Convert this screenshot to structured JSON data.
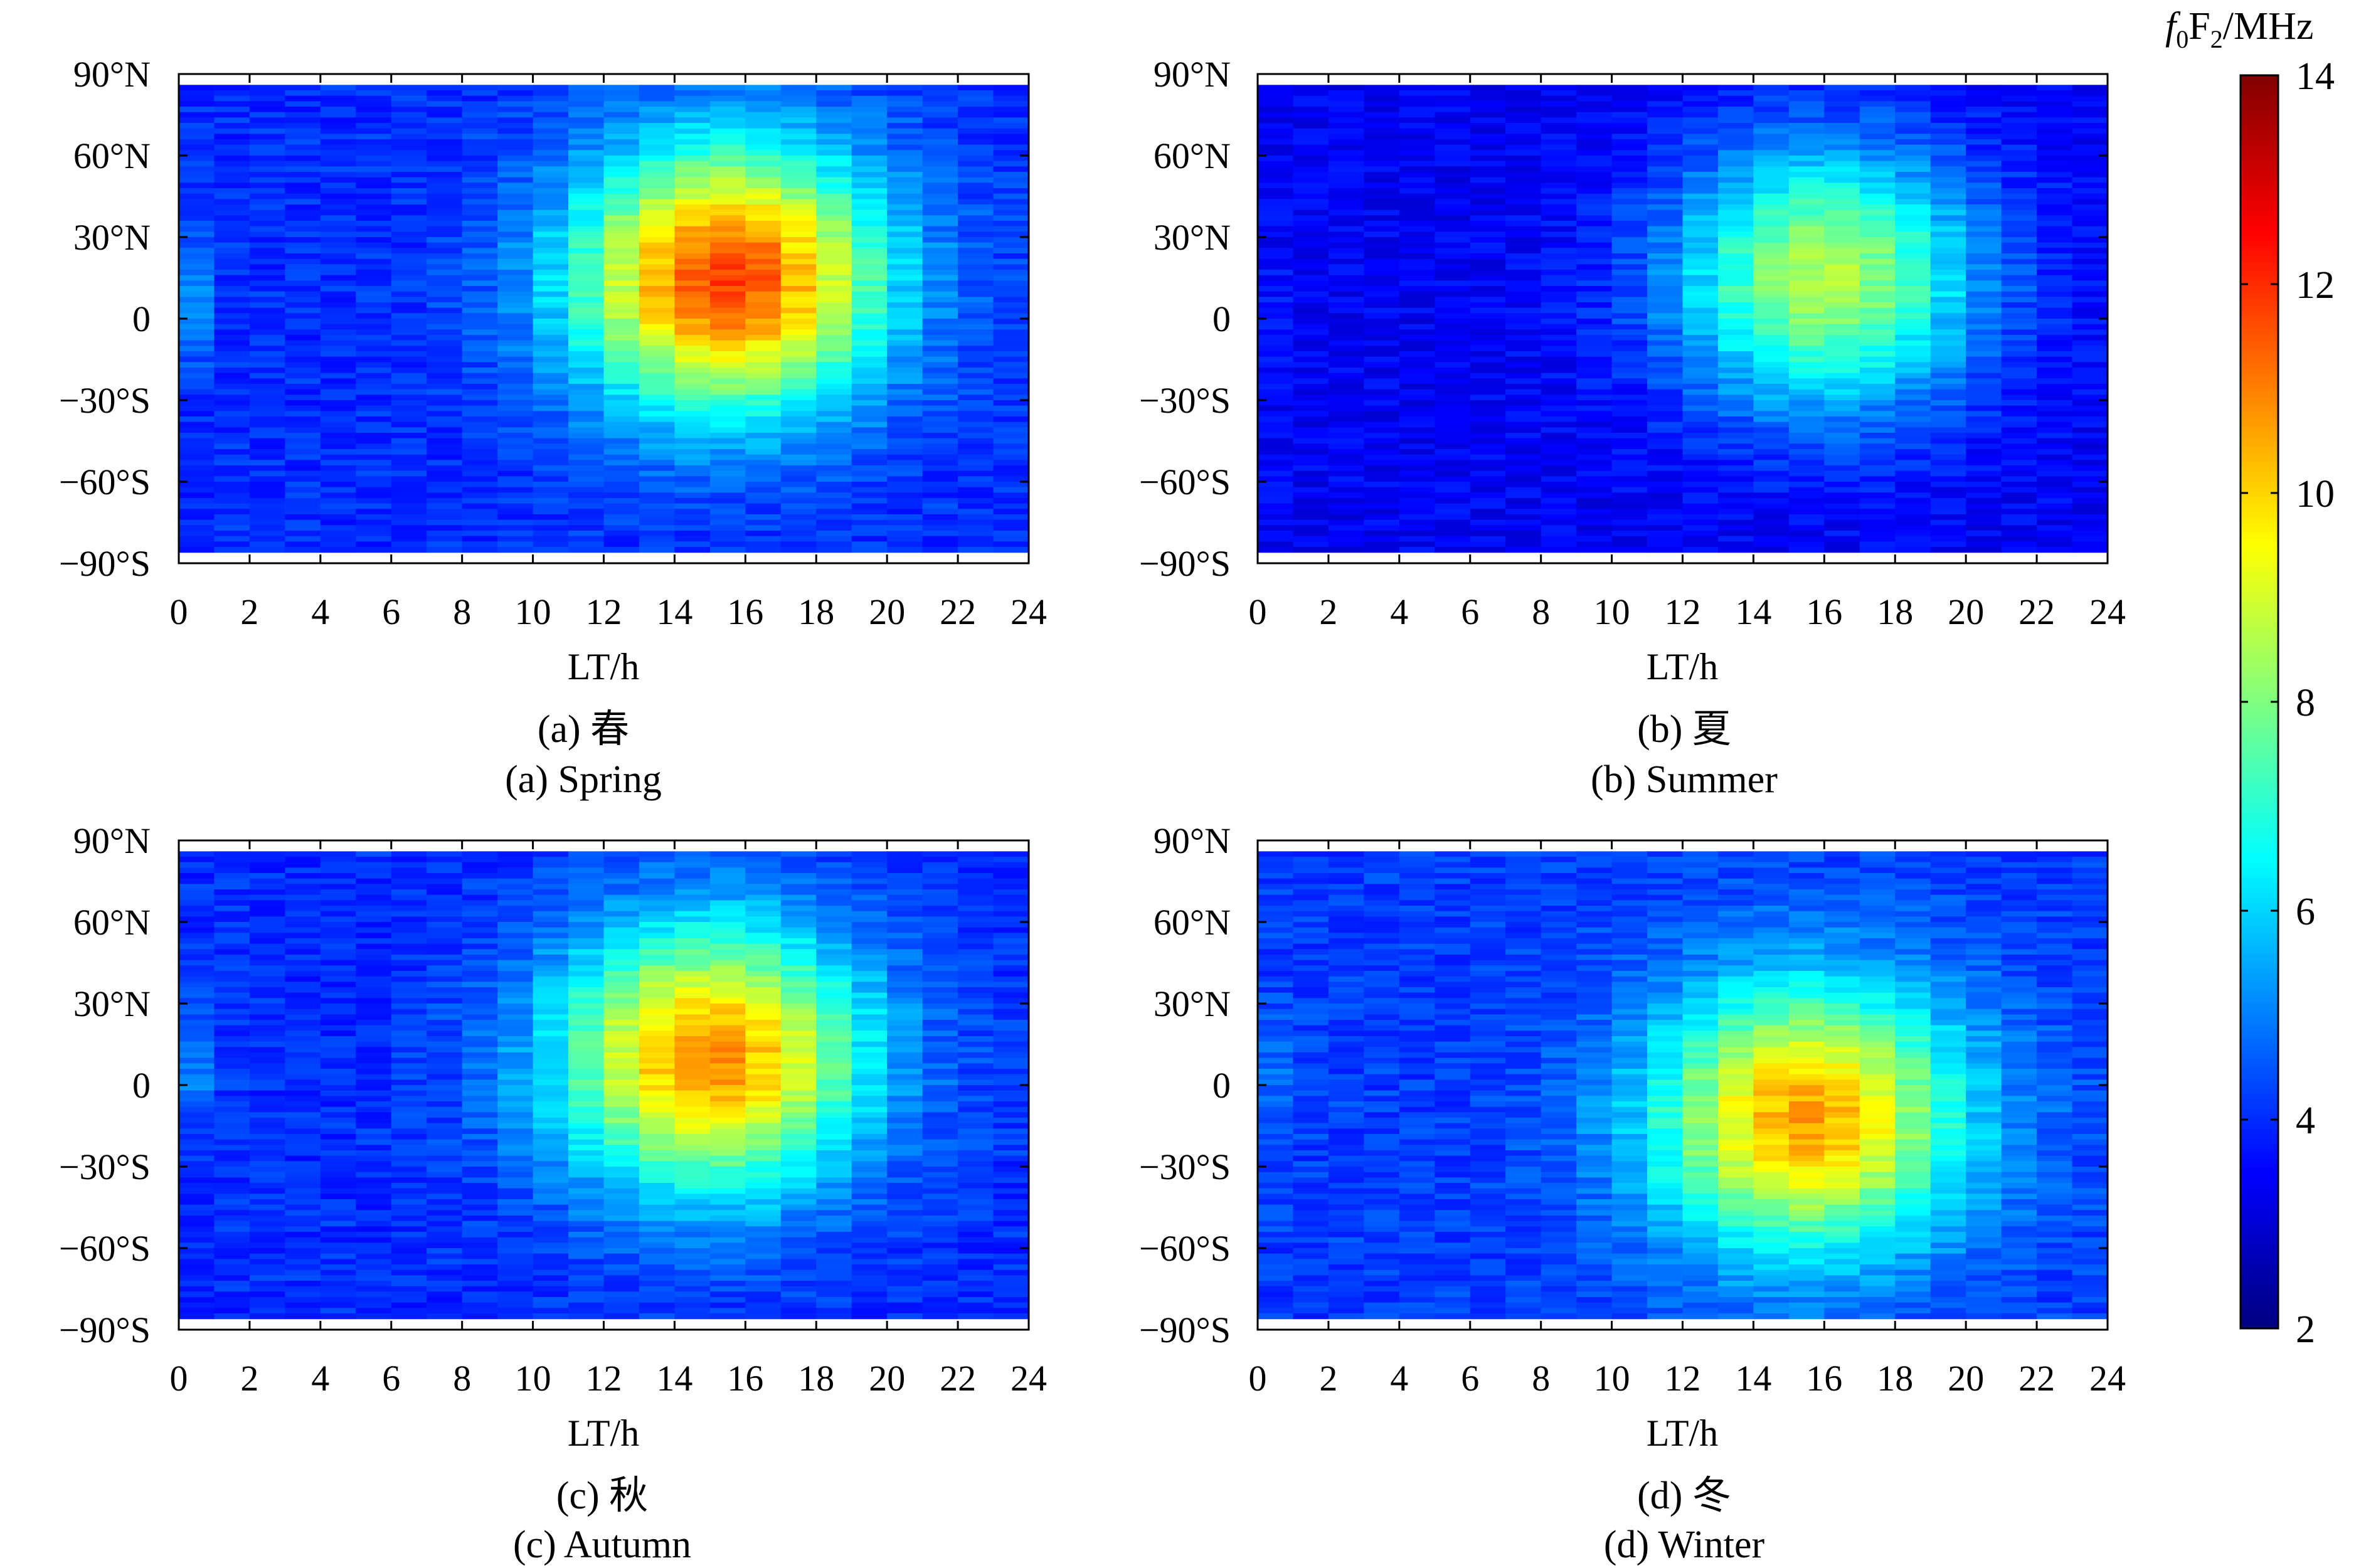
{
  "chart_data": {
    "type": "heatmap",
    "colorbar": {
      "title_main": "f",
      "title_sub0": "0",
      "title_F": "F",
      "title_sub2": "2",
      "title_unit": "/MHz",
      "min": 2,
      "max": 14,
      "ticks": [
        2,
        4,
        6,
        8,
        10,
        12,
        14
      ],
      "tick_labels": [
        "2",
        "4",
        "6",
        "8",
        "10",
        "12",
        "14"
      ],
      "colormap": "jet"
    },
    "panels": [
      {
        "id": "a",
        "caption_cn": "(a) 春",
        "caption_en": "(a) Spring",
        "xlabel": "LT/h",
        "xlim": [
          0,
          24
        ],
        "ylim": [
          -90,
          90
        ],
        "xticks": [
          "0",
          "2",
          "4",
          "6",
          "8",
          "10",
          "12",
          "14",
          "16",
          "18",
          "20",
          "22",
          "24"
        ],
        "yticks": [
          "90°N",
          "60°N",
          "30°N",
          "0",
          "−30°S",
          "−60°S",
          "−90°S"
        ],
        "night_base": 4.0,
        "day_peak": 11.8,
        "peak_lt": 15.5,
        "peak_lat": 15,
        "night_crest_value": 5.6
      },
      {
        "id": "b",
        "caption_cn": "(b) 夏",
        "caption_en": "(b) Summer",
        "xlabel": "LT/h",
        "xlim": [
          0,
          24
        ],
        "ylim": [
          -90,
          90
        ],
        "xticks": [
          "0",
          "2",
          "4",
          "6",
          "8",
          "10",
          "12",
          "14",
          "16",
          "18",
          "20",
          "22",
          "24"
        ],
        "yticks": [
          "90°N",
          "60°N",
          "30°N",
          "0",
          "−30°S",
          "−60°S",
          "−90°S"
        ],
        "night_base": 3.4,
        "day_peak": 8.6,
        "peak_lt": 16,
        "peak_lat": 15,
        "night_crest_value": 3.8
      },
      {
        "id": "c",
        "caption_cn": "(c) 秋",
        "caption_en": "(c) Autumn",
        "xlabel": "LT/h",
        "xlim": [
          0,
          24
        ],
        "ylim": [
          -90,
          90
        ],
        "xticks": [
          "0",
          "2",
          "4",
          "6",
          "8",
          "10",
          "12",
          "14",
          "16",
          "18",
          "20",
          "22",
          "24"
        ],
        "yticks": [
          "90°N",
          "60°N",
          "30°N",
          "0",
          "−30°S",
          "−60°S",
          "−90°S"
        ],
        "night_base": 4.0,
        "day_peak": 10.9,
        "peak_lt": 15,
        "peak_lat": 10,
        "night_crest_value": 5.2
      },
      {
        "id": "d",
        "caption_cn": "(d) 冬",
        "caption_en": "(d) Winter",
        "xlabel": "LT/h",
        "xlim": [
          0,
          24
        ],
        "ylim": [
          -90,
          90
        ],
        "xticks": [
          "0",
          "2",
          "4",
          "6",
          "8",
          "10",
          "12",
          "14",
          "16",
          "18",
          "20",
          "22",
          "24"
        ],
        "yticks": [
          "90°N",
          "60°N",
          "30°N",
          "0",
          "−30°S",
          "−60°S",
          "−90°S"
        ],
        "night_base": 4.2,
        "day_peak": 10.6,
        "peak_lt": 15.5,
        "peak_lat": -12,
        "night_crest_value": 5.0
      }
    ]
  }
}
